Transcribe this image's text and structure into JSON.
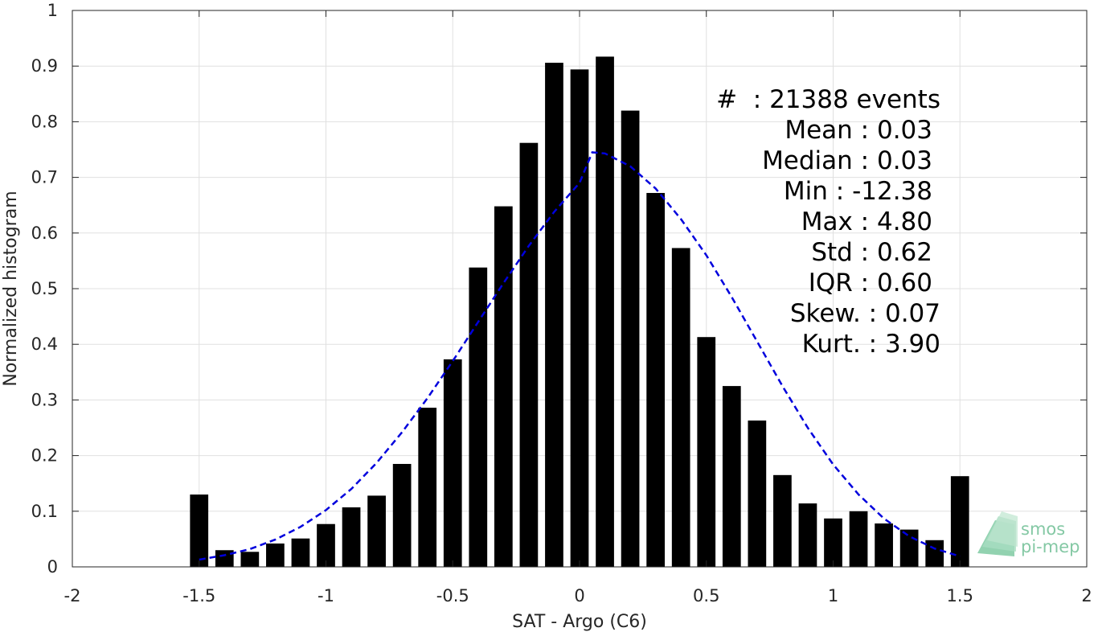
{
  "chart_data": {
    "type": "bar",
    "xlabel": "SAT - Argo (C6)",
    "ylabel": "Normalized histogram",
    "xlim": [
      -2,
      2
    ],
    "ylim": [
      0,
      1
    ],
    "xticks": [
      "-2",
      "-1.5",
      "-1",
      "-0.5",
      "0",
      "0.5",
      "1",
      "1.5",
      "2"
    ],
    "yticks": [
      "0",
      "0.1",
      "0.2",
      "0.3",
      "0.4",
      "0.5",
      "0.6",
      "0.7",
      "0.8",
      "0.9",
      "1"
    ],
    "grid": true,
    "bar_color": "#000000",
    "bin_width": 0.1,
    "bars": {
      "x": [
        -1.5,
        -1.4,
        -1.3,
        -1.2,
        -1.1,
        -1.0,
        -0.9,
        -0.8,
        -0.7,
        -0.6,
        -0.5,
        -0.4,
        -0.3,
        -0.2,
        -0.1,
        0.0,
        0.1,
        0.2,
        0.3,
        0.4,
        0.5,
        0.6,
        0.7,
        0.8,
        0.9,
        1.0,
        1.1,
        1.2,
        1.3,
        1.4,
        1.5
      ],
      "values": [
        0.13,
        0.03,
        0.027,
        0.042,
        0.051,
        0.077,
        0.107,
        0.128,
        0.185,
        0.286,
        0.373,
        0.538,
        0.648,
        0.762,
        0.906,
        0.894,
        0.917,
        0.82,
        0.672,
        0.573,
        0.413,
        0.325,
        0.263,
        0.165,
        0.114,
        0.087,
        0.1,
        0.078,
        0.067,
        0.048,
        0.163
      ]
    },
    "fit_curve": {
      "style": "dashed",
      "color": "#0000dd",
      "x": [
        -1.5,
        -1.4,
        -1.3,
        -1.2,
        -1.1,
        -1.0,
        -0.9,
        -0.8,
        -0.7,
        -0.6,
        -0.5,
        -0.4,
        -0.3,
        -0.2,
        -0.1,
        0.0,
        0.05,
        0.1,
        0.2,
        0.3,
        0.4,
        0.5,
        0.6,
        0.7,
        0.8,
        0.9,
        1.0,
        1.1,
        1.2,
        1.3,
        1.4,
        1.5
      ],
      "values": [
        0.013,
        0.021,
        0.032,
        0.049,
        0.072,
        0.102,
        0.14,
        0.187,
        0.242,
        0.303,
        0.37,
        0.44,
        0.51,
        0.577,
        0.638,
        0.69,
        0.745,
        0.743,
        0.72,
        0.68,
        0.625,
        0.56,
        0.485,
        0.405,
        0.325,
        0.25,
        0.184,
        0.13,
        0.087,
        0.055,
        0.033,
        0.019
      ]
    },
    "annotation_lines": [
      "#  : 21388 events",
      "Mean : 0.03",
      "Median : 0.03",
      "Min : -12.38",
      "Max : 4.80",
      "Std : 0.62",
      "IQR : 0.60",
      "Skew. : 0.07",
      "Kurt. : 3.90"
    ]
  },
  "logo": {
    "line1": "smos",
    "line2": "pi-mep",
    "color": "#6fbf95"
  }
}
